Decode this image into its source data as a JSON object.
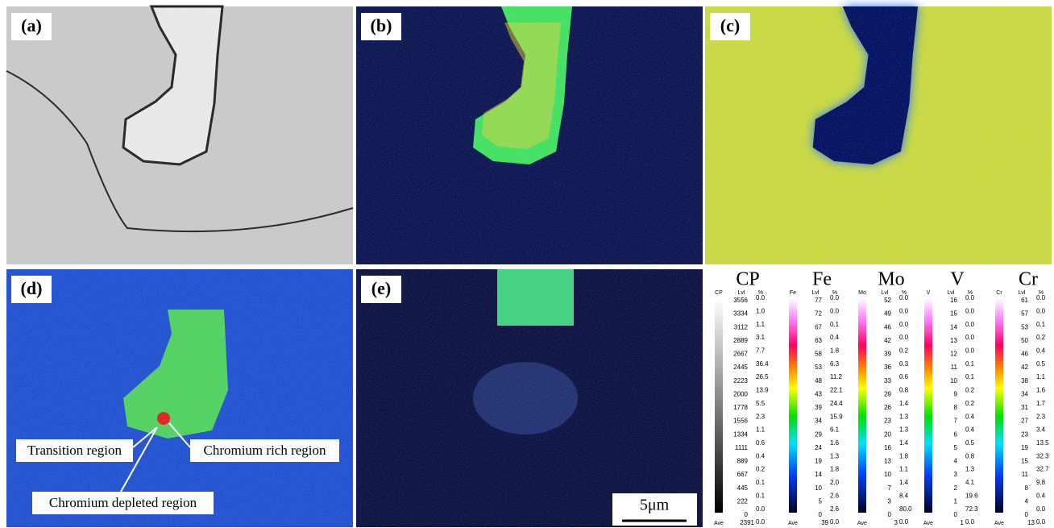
{
  "panels": [
    {
      "label": "(a)"
    },
    {
      "label": "(b)"
    },
    {
      "label": "(c)"
    },
    {
      "label": "(d)"
    },
    {
      "label": "(e)"
    }
  ],
  "annotations": [
    "Transition region",
    "Chromium rich region",
    "Chromium depleted region"
  ],
  "scale_bar": "5μm",
  "legends": [
    {
      "element": "CP",
      "code": "CP",
      "lvl_header": "Lvl",
      "pct_header": "%",
      "levels": [
        3556,
        3334,
        3112,
        2889,
        2667,
        2445,
        2223,
        2000,
        1778,
        1556,
        1334,
        1111,
        889,
        667,
        445,
        222,
        0
      ],
      "percent": [
        "0.0",
        "1.0",
        "1.1",
        "3.1",
        "7.7",
        "36.4",
        "26.5",
        "13.9",
        "5.5",
        "2.3",
        "1.1",
        "0.6",
        "0.4",
        "0.2",
        "0.1",
        "0.1",
        "0.0",
        "0.0"
      ],
      "ave_label": "Ave",
      "ave": 2391
    },
    {
      "element": "Fe",
      "code": "Fe",
      "lvl_header": "Lvl",
      "pct_header": "%",
      "levels": [
        77,
        72,
        67,
        63,
        58,
        53,
        48,
        43,
        39,
        34,
        29,
        24,
        19,
        14,
        10,
        5,
        0
      ],
      "percent": [
        "0.0",
        "0.0",
        "0.1",
        "0.4",
        "1.8",
        "6.3",
        "11.2",
        "22.1",
        "24.4",
        "15.9",
        "6.1",
        "1.6",
        "1.3",
        "1.8",
        "2.0",
        "2.6",
        "2.6",
        "0.0"
      ],
      "ave_label": "Ave",
      "ave": 39
    },
    {
      "element": "Mo",
      "code": "Mo",
      "lvl_header": "Lvl",
      "pct_header": "%",
      "levels": [
        52,
        49,
        46,
        42,
        39,
        36,
        33,
        29,
        26,
        23,
        20,
        16,
        13,
        10,
        7,
        3,
        0
      ],
      "percent": [
        "0.0",
        "0.0",
        "0.0",
        "0.0",
        "0.2",
        "0.3",
        "0.6",
        "0.8",
        "1.4",
        "1.3",
        "1.3",
        "1.4",
        "1.8",
        "1.1",
        "1.4",
        "8.4",
        "80.0",
        "0.0"
      ],
      "ave_label": "Ave",
      "ave": 3
    },
    {
      "element": "V",
      "code": "V",
      "lvl_header": "Lvl",
      "pct_header": "%",
      "levels": [
        16,
        15,
        14,
        13,
        12,
        11,
        10,
        9,
        8,
        7,
        6,
        5,
        4,
        3,
        2,
        1,
        0
      ],
      "percent": [
        "0.0",
        "0.0",
        "0.0",
        "0.0",
        "0.0",
        "0.1",
        "0.1",
        "0.2",
        "0.2",
        "0.4",
        "0.4",
        "0.5",
        "0.8",
        "1.3",
        "4.1",
        "19.6",
        "72.3",
        "0.0"
      ],
      "ave_label": "Ave",
      "ave": 1
    },
    {
      "element": "Cr",
      "code": "Cr",
      "lvl_header": "Lvl",
      "pct_header": "%",
      "levels": [
        61,
        57,
        53,
        50,
        46,
        42,
        38,
        34,
        31,
        27,
        23,
        19,
        15,
        11,
        8,
        4,
        0
      ],
      "percent": [
        "0.0",
        "0.0",
        "0.1",
        "0.2",
        "0.4",
        "0.5",
        "1.1",
        "1.6",
        "1.7",
        "2.3",
        "3.4",
        "13.5",
        "32.3",
        "32.7",
        "9.8",
        "0.4",
        "0.0",
        "0.0"
      ],
      "ave_label": "Ave",
      "ave": 13
    }
  ]
}
